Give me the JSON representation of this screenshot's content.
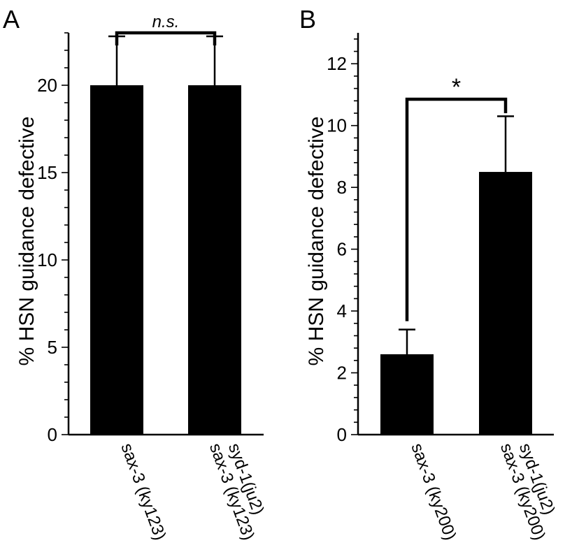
{
  "panels": {
    "a": {
      "label": "A"
    },
    "b": {
      "label": "B"
    }
  },
  "chart_data": [
    {
      "type": "bar",
      "panel": "A",
      "ylabel": "% HSN guidance defective",
      "xlabel": "",
      "ylim": [
        0,
        23
      ],
      "yticks": [
        0,
        5,
        10,
        15,
        20
      ],
      "categories": [
        [
          "sax-3 (ky123)"
        ],
        [
          "sax-3 (ky123)",
          "syd-1(ju2)"
        ]
      ],
      "values": [
        20,
        20
      ],
      "errors": [
        2.8,
        2.8
      ],
      "significance": {
        "between": [
          0,
          1
        ],
        "label": "n.s.",
        "italic": true
      },
      "bar_color": "#000000"
    },
    {
      "type": "bar",
      "panel": "B",
      "ylabel": "% HSN guidance defective",
      "xlabel": "",
      "ylim": [
        0,
        13
      ],
      "yticks": [
        0,
        2,
        4,
        6,
        8,
        10,
        12
      ],
      "categories": [
        [
          "sax-3 (ky200)"
        ],
        [
          "sax-3 (ky200)",
          "syd-1(ju2)"
        ]
      ],
      "values": [
        2.6,
        8.5
      ],
      "errors": [
        0.8,
        1.8
      ],
      "significance": {
        "between": [
          0,
          1
        ],
        "label": "*",
        "italic": false
      },
      "bar_color": "#000000"
    }
  ]
}
